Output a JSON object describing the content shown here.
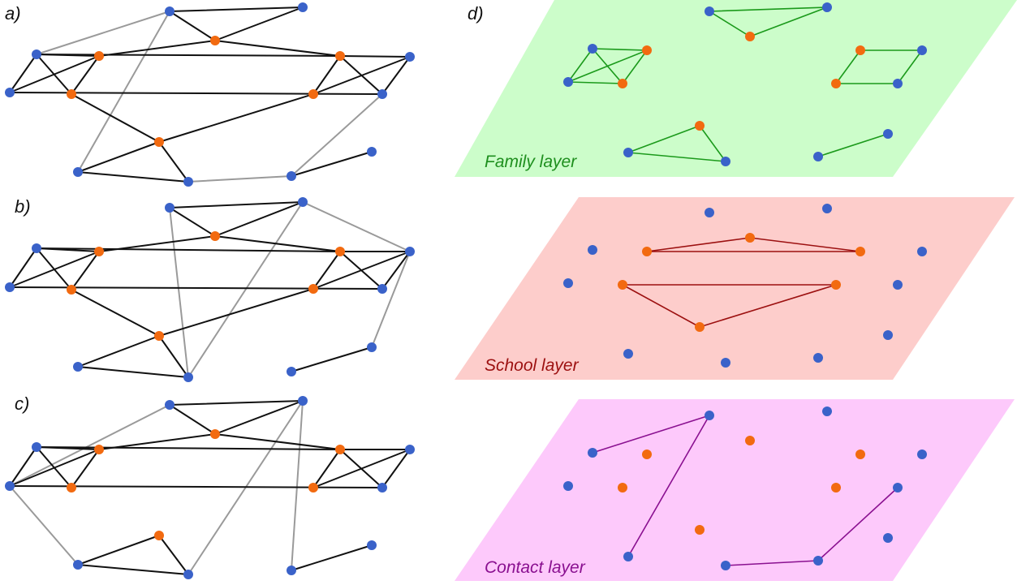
{
  "colors": {
    "person": "#3a62c9",
    "school_member": "#f26a10",
    "black_edge": "#111111",
    "gray_edge": "#9a9a9a",
    "family_plane": "#ccfdca",
    "family_edge": "#1b9a1b",
    "family_text": "#1e8f1e",
    "school_plane": "#fdcdcb",
    "school_edge": "#9c1010",
    "school_text": "#9c1010",
    "contact_plane": "#fdc9fb",
    "contact_edge": "#8a1090",
    "contact_text": "#8a1090"
  },
  "panels": {
    "a": {
      "label": "a)"
    },
    "b": {
      "label": "b)"
    },
    "c": {
      "label": "c)"
    },
    "d": {
      "label": "d)"
    }
  },
  "layers": {
    "family": {
      "label": "Family layer",
      "color": "family"
    },
    "school": {
      "label": "School layer",
      "color": "school"
    },
    "contact": {
      "label": "Contact layer",
      "color": "contact"
    }
  }
}
